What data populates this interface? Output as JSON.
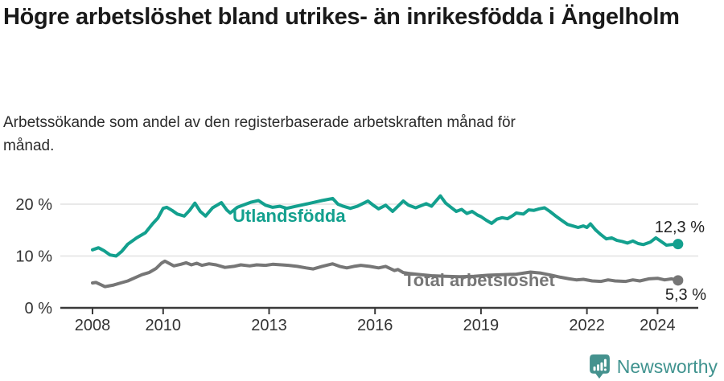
{
  "page": {
    "title": "Högre arbetslöshet bland utrikes- än inrikesfödda i Ängelholm",
    "subtitle": "Arbetssökande som andel av den registerbaserade arbetskraften månad för månad."
  },
  "chart_data": {
    "type": "line",
    "title": "Högre arbetslöshet bland utrikes- än inrikesfödda i Ängelholm",
    "subtitle": "Arbetssökande som andel av den registerbaserade arbetskraften månad för månad.",
    "x_unit": "decimal_year",
    "xlim": [
      2008,
      2024.75
    ],
    "ylim": [
      0,
      22
    ],
    "grid": "horizontal-only",
    "x_ticks": [
      2008,
      2010,
      2013,
      2016,
      2019,
      2022,
      2024
    ],
    "y_ticks": [
      {
        "value": 0,
        "label": "0 %"
      },
      {
        "value": 10,
        "label": "10 %"
      },
      {
        "value": 20,
        "label": "20 %"
      }
    ],
    "colors": {
      "gridline": "#e2e2e2",
      "axis": "#3a3a3a",
      "tick_text": "#333333"
    },
    "series": [
      {
        "name": "Utlandsfödda",
        "color": "#13a08e",
        "end_value": 12.3,
        "end_label": "12,3 %",
        "points": [
          [
            2008.0,
            11.2
          ],
          [
            2008.17,
            11.6
          ],
          [
            2008.33,
            11.0
          ],
          [
            2008.5,
            10.2
          ],
          [
            2008.67,
            10.0
          ],
          [
            2008.83,
            10.9
          ],
          [
            2009.0,
            12.3
          ],
          [
            2009.25,
            13.5
          ],
          [
            2009.5,
            14.5
          ],
          [
            2009.7,
            16.2
          ],
          [
            2009.85,
            17.3
          ],
          [
            2010.0,
            19.2
          ],
          [
            2010.1,
            19.4
          ],
          [
            2010.25,
            18.8
          ],
          [
            2010.4,
            18.1
          ],
          [
            2010.6,
            17.7
          ],
          [
            2010.75,
            18.8
          ],
          [
            2010.9,
            20.2
          ],
          [
            2011.05,
            18.6
          ],
          [
            2011.2,
            17.7
          ],
          [
            2011.4,
            19.3
          ],
          [
            2011.65,
            20.3
          ],
          [
            2011.8,
            18.9
          ],
          [
            2011.9,
            18.3
          ],
          [
            2012.1,
            19.4
          ],
          [
            2012.3,
            19.9
          ],
          [
            2012.5,
            20.4
          ],
          [
            2012.7,
            20.7
          ],
          [
            2012.9,
            19.8
          ],
          [
            2013.1,
            19.4
          ],
          [
            2013.3,
            19.6
          ],
          [
            2013.5,
            19.2
          ],
          [
            2013.7,
            19.5
          ],
          [
            2013.9,
            19.8
          ],
          [
            2014.1,
            20.1
          ],
          [
            2014.3,
            20.4
          ],
          [
            2014.5,
            20.7
          ],
          [
            2014.8,
            21.1
          ],
          [
            2014.95,
            20.0
          ],
          [
            2015.1,
            19.6
          ],
          [
            2015.3,
            19.2
          ],
          [
            2015.5,
            19.6
          ],
          [
            2015.8,
            20.6
          ],
          [
            2015.95,
            19.8
          ],
          [
            2016.1,
            19.1
          ],
          [
            2016.3,
            19.8
          ],
          [
            2016.5,
            18.6
          ],
          [
            2016.8,
            20.6
          ],
          [
            2016.95,
            19.8
          ],
          [
            2017.15,
            19.3
          ],
          [
            2017.45,
            20.1
          ],
          [
            2017.6,
            19.6
          ],
          [
            2017.85,
            21.6
          ],
          [
            2018.0,
            20.2
          ],
          [
            2018.15,
            19.4
          ],
          [
            2018.3,
            18.6
          ],
          [
            2018.45,
            19.0
          ],
          [
            2018.6,
            18.2
          ],
          [
            2018.75,
            18.6
          ],
          [
            2018.9,
            17.9
          ],
          [
            2019.0,
            17.6
          ],
          [
            2019.15,
            16.9
          ],
          [
            2019.3,
            16.3
          ],
          [
            2019.45,
            17.1
          ],
          [
            2019.6,
            17.4
          ],
          [
            2019.75,
            17.2
          ],
          [
            2019.9,
            17.8
          ],
          [
            2020.0,
            18.3
          ],
          [
            2020.2,
            18.1
          ],
          [
            2020.35,
            18.9
          ],
          [
            2020.5,
            18.8
          ],
          [
            2020.65,
            19.1
          ],
          [
            2020.8,
            19.3
          ],
          [
            2020.95,
            18.6
          ],
          [
            2021.1,
            17.8
          ],
          [
            2021.3,
            16.8
          ],
          [
            2021.45,
            16.1
          ],
          [
            2021.6,
            15.8
          ],
          [
            2021.75,
            15.5
          ],
          [
            2021.9,
            15.8
          ],
          [
            2022.0,
            15.5
          ],
          [
            2022.1,
            16.2
          ],
          [
            2022.25,
            15.0
          ],
          [
            2022.4,
            14.1
          ],
          [
            2022.55,
            13.3
          ],
          [
            2022.7,
            13.5
          ],
          [
            2022.85,
            13.0
          ],
          [
            2023.0,
            12.8
          ],
          [
            2023.15,
            12.5
          ],
          [
            2023.3,
            12.9
          ],
          [
            2023.45,
            12.4
          ],
          [
            2023.6,
            12.2
          ],
          [
            2023.8,
            12.7
          ],
          [
            2023.95,
            13.5
          ],
          [
            2024.1,
            12.8
          ],
          [
            2024.25,
            12.1
          ],
          [
            2024.4,
            12.2
          ],
          [
            2024.58,
            12.3
          ]
        ]
      },
      {
        "name": "Total arbetslöshet",
        "color": "#767676",
        "end_value": 5.3,
        "end_label": "5,3 %",
        "points": [
          [
            2008.0,
            4.8
          ],
          [
            2008.1,
            4.9
          ],
          [
            2008.35,
            4.1
          ],
          [
            2008.6,
            4.4
          ],
          [
            2008.8,
            4.8
          ],
          [
            2009.0,
            5.2
          ],
          [
            2009.2,
            5.8
          ],
          [
            2009.4,
            6.4
          ],
          [
            2009.6,
            6.8
          ],
          [
            2009.8,
            7.6
          ],
          [
            2009.95,
            8.6
          ],
          [
            2010.05,
            9.0
          ],
          [
            2010.3,
            8.1
          ],
          [
            2010.5,
            8.4
          ],
          [
            2010.65,
            8.7
          ],
          [
            2010.8,
            8.3
          ],
          [
            2010.95,
            8.6
          ],
          [
            2011.1,
            8.2
          ],
          [
            2011.3,
            8.5
          ],
          [
            2011.5,
            8.3
          ],
          [
            2011.75,
            7.8
          ],
          [
            2012.0,
            8.0
          ],
          [
            2012.2,
            8.3
          ],
          [
            2012.45,
            8.1
          ],
          [
            2012.65,
            8.3
          ],
          [
            2012.9,
            8.2
          ],
          [
            2013.1,
            8.4
          ],
          [
            2013.35,
            8.3
          ],
          [
            2013.55,
            8.2
          ],
          [
            2013.8,
            8.0
          ],
          [
            2014.05,
            7.7
          ],
          [
            2014.25,
            7.5
          ],
          [
            2014.5,
            8.0
          ],
          [
            2014.8,
            8.5
          ],
          [
            2015.0,
            8.0
          ],
          [
            2015.2,
            7.7
          ],
          [
            2015.4,
            8.0
          ],
          [
            2015.6,
            8.2
          ],
          [
            2015.85,
            8.0
          ],
          [
            2016.1,
            7.7
          ],
          [
            2016.3,
            8.0
          ],
          [
            2016.55,
            7.2
          ],
          [
            2016.65,
            7.4
          ],
          [
            2016.8,
            6.8
          ],
          [
            2017.0,
            6.6
          ],
          [
            2017.3,
            6.4
          ],
          [
            2017.6,
            6.2
          ],
          [
            2018.0,
            6.1
          ],
          [
            2018.4,
            6.0
          ],
          [
            2018.8,
            6.1
          ],
          [
            2019.2,
            6.3
          ],
          [
            2019.6,
            6.4
          ],
          [
            2020.0,
            6.5
          ],
          [
            2020.4,
            6.9
          ],
          [
            2020.7,
            6.7
          ],
          [
            2021.0,
            6.3
          ],
          [
            2021.25,
            5.9
          ],
          [
            2021.5,
            5.6
          ],
          [
            2021.7,
            5.4
          ],
          [
            2021.9,
            5.5
          ],
          [
            2022.15,
            5.2
          ],
          [
            2022.4,
            5.1
          ],
          [
            2022.6,
            5.4
          ],
          [
            2022.8,
            5.2
          ],
          [
            2023.1,
            5.1
          ],
          [
            2023.3,
            5.4
          ],
          [
            2023.5,
            5.2
          ],
          [
            2023.75,
            5.6
          ],
          [
            2024.0,
            5.7
          ],
          [
            2024.2,
            5.4
          ],
          [
            2024.4,
            5.6
          ],
          [
            2024.58,
            5.3
          ]
        ]
      }
    ]
  },
  "footer": {
    "brand": "Newsworthy",
    "brand_color": "#40938f",
    "logo_color": "#45928e",
    "logo_icon": "newsworthy-speech-bubble-bar-chart-icon"
  }
}
